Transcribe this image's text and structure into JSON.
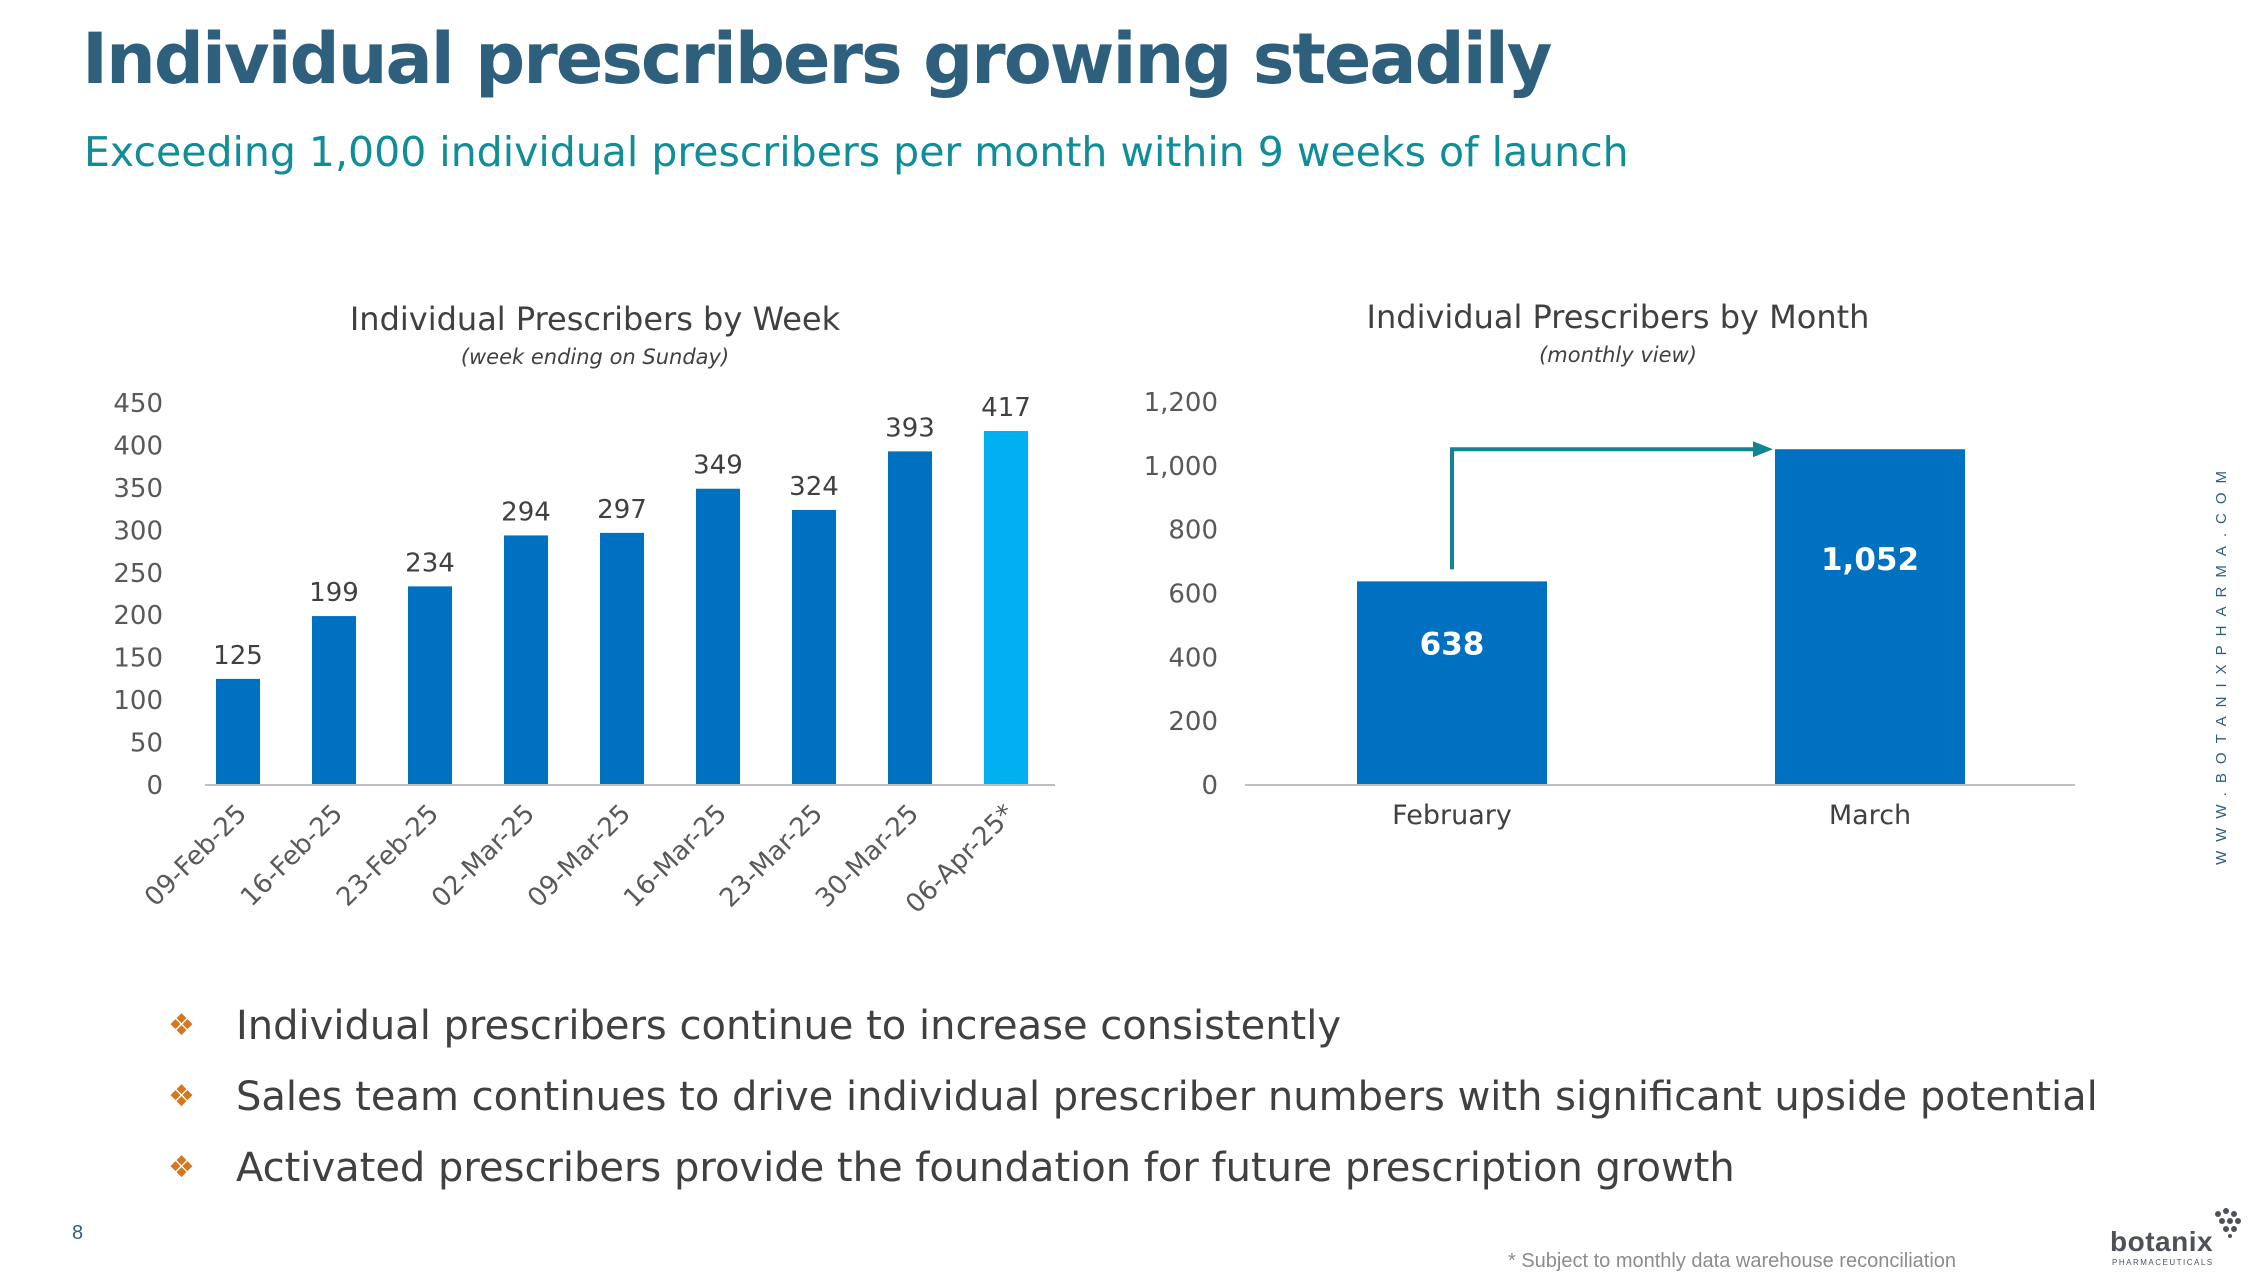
{
  "slide": {
    "title": "Individual prescribers growing steadily",
    "subtitle": "Exceeding 1,000 individual prescribers per month within 9 weeks of launch",
    "page_number": "8",
    "footnote": "* Subject to monthly data warehouse reconciliation",
    "website": "WWW.BOTANIXPHARMA.COM",
    "logo": {
      "name": "botanix",
      "tagline": "PHARMACEUTICALS"
    }
  },
  "bullets": [
    {
      "icon": "diamond-bullet-icon",
      "text": "Individual prescribers continue to increase consistently"
    },
    {
      "icon": "diamond-bullet-icon",
      "text": "Sales team continues to drive individual prescriber numbers with significant upside potential"
    },
    {
      "icon": "diamond-bullet-icon",
      "text": "Activated prescribers provide the foundation for future prescription growth"
    }
  ],
  "colors": {
    "title": "#2e5f7c",
    "subtitle": "#0f8d98",
    "bar": "#0070c0",
    "bar_highlight": "#00b0f0",
    "arrow": "#13848f",
    "bullet_icon": "#d6761e"
  },
  "chart_data": [
    {
      "type": "bar",
      "title": "Individual Prescribers by Week",
      "subtitle": "(week ending on Sunday)",
      "categories": [
        "09-Feb-25",
        "16-Feb-25",
        "23-Feb-25",
        "02-Mar-25",
        "09-Mar-25",
        "16-Mar-25",
        "23-Mar-25",
        "30-Mar-25",
        "06-Apr-25*"
      ],
      "values": [
        125,
        199,
        234,
        294,
        297,
        349,
        324,
        393,
        417
      ],
      "data_labels": [
        "125",
        "199",
        "234",
        "294",
        "297",
        "349",
        "324",
        "393",
        "417"
      ],
      "highlight_index": 8,
      "ylim": [
        0,
        450
      ],
      "yticks": [
        0,
        50,
        100,
        150,
        200,
        250,
        300,
        350,
        400,
        450
      ],
      "ytick_labels": [
        "0",
        "50",
        "100",
        "150",
        "200",
        "250",
        "300",
        "350",
        "400",
        "450"
      ],
      "xlabel": "",
      "ylabel": "",
      "grid": false
    },
    {
      "type": "bar",
      "title": "Individual Prescribers by Month",
      "subtitle": "(monthly view)",
      "categories": [
        "February",
        "March"
      ],
      "values": [
        638,
        1052
      ],
      "data_labels": [
        "638",
        "1,052"
      ],
      "ylim": [
        0,
        1200
      ],
      "yticks": [
        0,
        200,
        400,
        600,
        800,
        1000,
        1200
      ],
      "ytick_labels": [
        "0",
        "200",
        "400",
        "600",
        "800",
        "1,000",
        "1,200"
      ],
      "annotation": "growth arrow from February to March",
      "xlabel": "",
      "ylabel": "",
      "grid": false
    }
  ]
}
